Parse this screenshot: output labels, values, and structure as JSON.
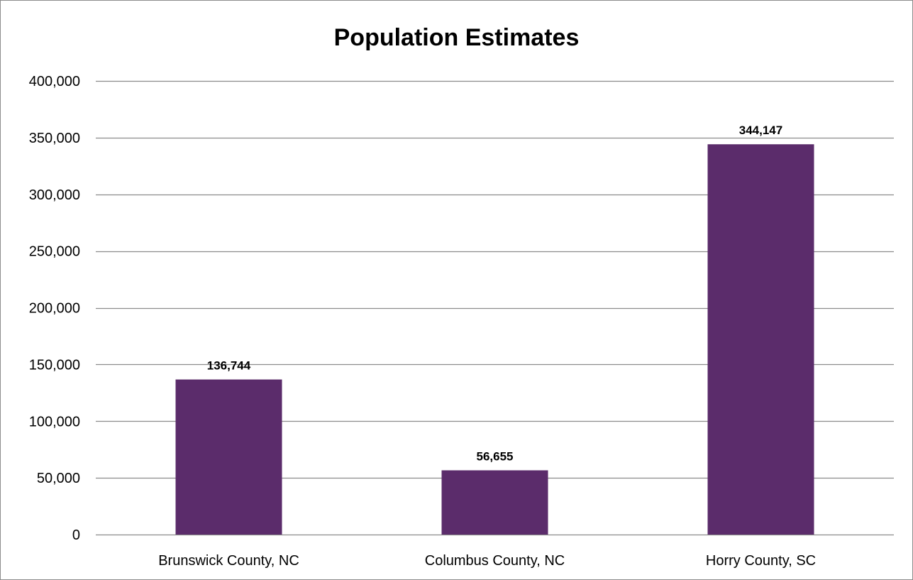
{
  "chart_data": {
    "type": "bar",
    "title": "Population Estimates",
    "xlabel": "",
    "ylabel": "",
    "categories": [
      "Brunswick County, NC",
      "Columbus County, NC",
      "Horry County, SC"
    ],
    "values": [
      136744,
      56655,
      344147
    ],
    "data_labels": [
      "136,744",
      "56,655",
      "344,147"
    ],
    "ylim": [
      0,
      400000
    ],
    "y_ticks": [
      0,
      50000,
      100000,
      150000,
      200000,
      250000,
      300000,
      350000,
      400000
    ],
    "y_tick_labels": [
      "0",
      "50,000",
      "100,000",
      "150,000",
      "200,000",
      "250,000",
      "300,000",
      "350,000",
      "400,000"
    ],
    "grid": true,
    "legend": "none",
    "bar_color": "#5b2c6b",
    "gridline_color": "#8c8c8c"
  }
}
